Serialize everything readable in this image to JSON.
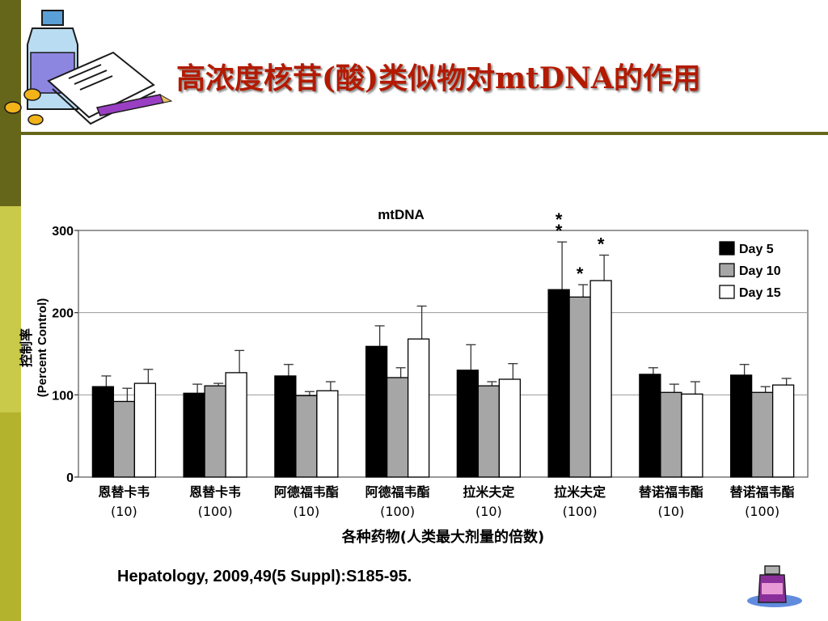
{
  "slide": {
    "title": "高浓度核苷(酸)类似物对mtDNA的作用",
    "citation": "Hepatology, 2009,49(5 Suppl):S185-95."
  },
  "icons": {
    "top_left": "medicine-bottle-pills-document-icon",
    "bottom_right": "medicine-bottle-icon"
  },
  "colors": {
    "title": "#b31a00",
    "left_bar_dark": "#66661a",
    "left_bar_light": "#c9c94a",
    "day5": "#000000",
    "day10": "#a6a6a6",
    "day15": "#ffffff"
  },
  "chart_data": {
    "type": "bar",
    "title": "mtDNA",
    "ylabel_cn": "控制率",
    "ylabel": "(Percent Control)",
    "xlabel": "各种药物(人类最大剂量的倍数)",
    "ylim": [
      0,
      300
    ],
    "yticks": [
      "0",
      "100",
      "200",
      "300"
    ],
    "grid": "horizontal at 100 and 200",
    "legend_position": "top-right",
    "categories": [
      {
        "drug": "恩替卡韦",
        "dose": "(10)"
      },
      {
        "drug": "恩替卡韦",
        "dose": "(100)"
      },
      {
        "drug": "阿德福韦酯",
        "dose": "(10)"
      },
      {
        "drug": "阿德福韦酯",
        "dose": "(100)"
      },
      {
        "drug": "拉米夫定",
        "dose": "(10)"
      },
      {
        "drug": "拉米夫定",
        "dose": "(100)"
      },
      {
        "drug": "替诺福韦酯",
        "dose": "(10)"
      },
      {
        "drug": "替诺福韦酯",
        "dose": "(100)"
      }
    ],
    "series": [
      {
        "name": "Day 5",
        "values": [
          110,
          102,
          123,
          159,
          130,
          228,
          125,
          124
        ],
        "errors": [
          13,
          11,
          14,
          25,
          31,
          58,
          8,
          13
        ]
      },
      {
        "name": "Day 10",
        "values": [
          92,
          111,
          99,
          121,
          111,
          219,
          103,
          103
        ],
        "errors": [
          16,
          3,
          5,
          12,
          5,
          15,
          10,
          7
        ]
      },
      {
        "name": "Day 15",
        "values": [
          114,
          127,
          105,
          168,
          119,
          239,
          101,
          112
        ],
        "errors": [
          17,
          27,
          11,
          40,
          19,
          31,
          15,
          8
        ]
      }
    ],
    "significance_markers": [
      {
        "category": 5,
        "series": 0,
        "text": "*"
      },
      {
        "category": 5,
        "series": 0,
        "text": "*"
      },
      {
        "category": 5,
        "series": 1,
        "text": "*"
      },
      {
        "category": 5,
        "series": 2,
        "text": "*"
      }
    ]
  }
}
